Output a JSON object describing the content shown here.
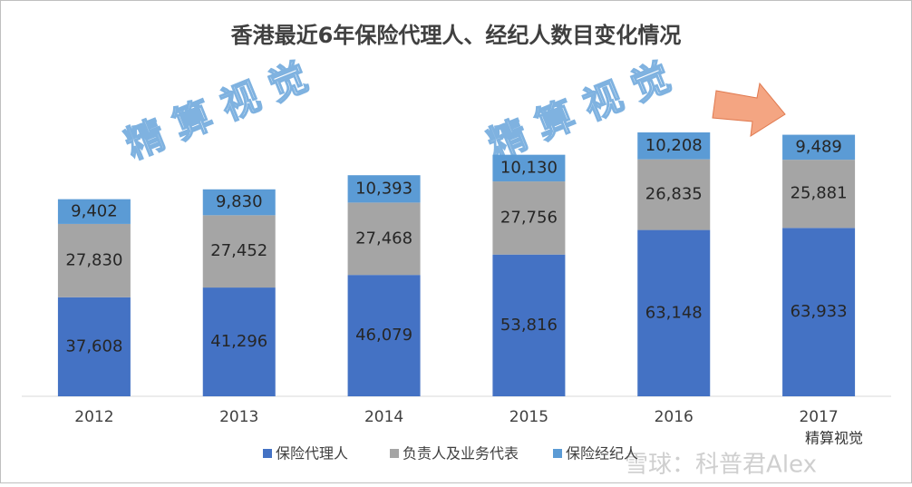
{
  "chart_data": {
    "type": "stacked_bar",
    "title": "香港最近6年保险代理人、经纪人数目变化情况",
    "categories": [
      "2012",
      "2013",
      "2014",
      "2015",
      "2016",
      "2017"
    ],
    "series": [
      {
        "name": "保险代理人",
        "color": "#4472c4",
        "values": [
          37608,
          41296,
          46079,
          53816,
          63148,
          63933
        ],
        "value_labels": [
          "37,608",
          "41,296",
          "46,079",
          "53,816",
          "63,148",
          "63,933"
        ]
      },
      {
        "name": "负责人及业务代表",
        "color": "#a5a5a5",
        "values": [
          27830,
          27452,
          27468,
          27756,
          26835,
          25881
        ],
        "value_labels": [
          "27,830",
          "27,452",
          "27,468",
          "27,756",
          "26,835",
          "25,881"
        ]
      },
      {
        "name": "保险经纪人",
        "color": "#5b9bd5",
        "values": [
          9402,
          9830,
          10393,
          10130,
          10208,
          9489
        ],
        "value_labels": [
          "9,402",
          "9,830",
          "10,393",
          "10,130",
          "10,208",
          "9,489"
        ]
      }
    ],
    "legend": "bottom",
    "watermarks": [
      "精 算 视 觉",
      "精 算 视 觉"
    ],
    "footer": [
      "雪球：科普君Alex",
      "精算视觉"
    ]
  }
}
